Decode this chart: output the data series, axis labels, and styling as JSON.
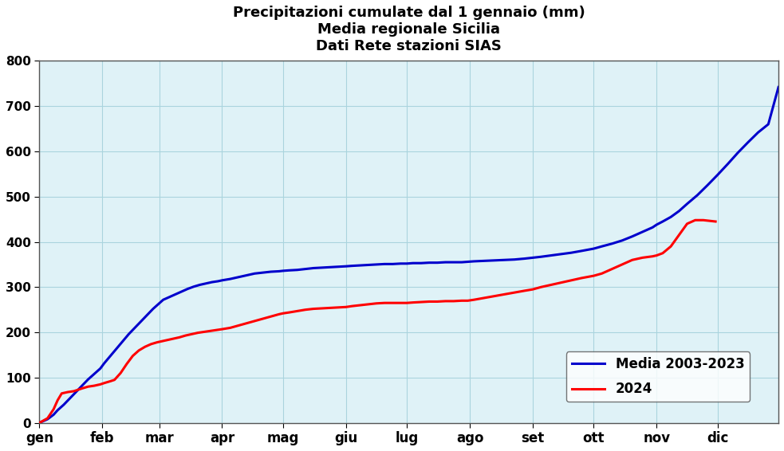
{
  "title_line1": "Precipitazioni cumulate dal 1 gennaio (mm)",
  "title_line2": "Media regionale Sicilia",
  "title_line3": "Dati Rete stazioni SIAS",
  "plot_bg_color": "#dff2f7",
  "outer_bg_color": "#ffffff",
  "ylim": [
    0,
    800
  ],
  "yticks": [
    0,
    100,
    200,
    300,
    400,
    500,
    600,
    700,
    800
  ],
  "months": [
    "gen",
    "feb",
    "mar",
    "apr",
    "mag",
    "giu",
    "lug",
    "ago",
    "set",
    "ott",
    "nov",
    "dic"
  ],
  "month_positions": [
    1,
    32,
    60,
    91,
    121,
    152,
    182,
    213,
    244,
    274,
    305,
    335
  ],
  "red_label": "2024",
  "blue_label": "Media 2003-2023",
  "red_color": "#ff0000",
  "blue_color": "#0000cc",
  "line_width": 2.2,
  "red_x": [
    1,
    5,
    8,
    10,
    12,
    15,
    18,
    20,
    22,
    25,
    28,
    31,
    33,
    36,
    38,
    41,
    44,
    47,
    50,
    53,
    56,
    59,
    61,
    64,
    67,
    70,
    73,
    76,
    79,
    82,
    85,
    88,
    91,
    95,
    99,
    103,
    107,
    111,
    115,
    119,
    121,
    124,
    128,
    132,
    136,
    140,
    144,
    148,
    152,
    155,
    159,
    163,
    167,
    171,
    175,
    179,
    182,
    185,
    189,
    193,
    197,
    201,
    205,
    209,
    212,
    215,
    220,
    225,
    230,
    235,
    240,
    244,
    248,
    253,
    258,
    263,
    268,
    274,
    278,
    283,
    288,
    293,
    298,
    303,
    305,
    308,
    312,
    316,
    320,
    324,
    328,
    332,
    334
  ],
  "red_y": [
    0,
    10,
    30,
    50,
    65,
    68,
    70,
    73,
    76,
    80,
    82,
    85,
    88,
    92,
    95,
    110,
    130,
    148,
    160,
    168,
    174,
    178,
    180,
    183,
    186,
    189,
    193,
    196,
    199,
    201,
    203,
    205,
    207,
    210,
    215,
    220,
    225,
    230,
    235,
    240,
    242,
    244,
    247,
    250,
    252,
    253,
    254,
    255,
    256,
    258,
    260,
    262,
    264,
    265,
    265,
    265,
    265,
    266,
    267,
    268,
    268,
    269,
    269,
    270,
    270,
    272,
    276,
    280,
    284,
    288,
    292,
    295,
    300,
    305,
    310,
    315,
    320,
    325,
    330,
    340,
    350,
    360,
    365,
    368,
    370,
    375,
    390,
    415,
    440,
    448,
    448,
    446,
    445
  ],
  "blue_x": [
    1,
    5,
    8,
    10,
    13,
    16,
    19,
    22,
    25,
    28,
    31,
    33,
    36,
    39,
    42,
    45,
    48,
    51,
    54,
    57,
    60,
    62,
    65,
    68,
    71,
    74,
    77,
    80,
    83,
    86,
    89,
    91,
    95,
    99,
    103,
    107,
    111,
    115,
    119,
    121,
    124,
    128,
    132,
    136,
    140,
    144,
    148,
    152,
    155,
    159,
    163,
    167,
    171,
    175,
    179,
    182,
    185,
    189,
    193,
    197,
    201,
    205,
    209,
    212,
    215,
    220,
    225,
    230,
    235,
    240,
    244,
    248,
    253,
    258,
    263,
    268,
    274,
    278,
    283,
    288,
    293,
    298,
    303,
    305,
    308,
    312,
    316,
    320,
    325,
    330,
    335,
    340,
    345,
    350,
    355,
    360,
    365
  ],
  "blue_y": [
    0,
    8,
    18,
    28,
    40,
    54,
    68,
    82,
    96,
    108,
    120,
    132,
    148,
    164,
    180,
    196,
    210,
    224,
    238,
    252,
    264,
    272,
    278,
    284,
    290,
    296,
    301,
    305,
    308,
    311,
    313,
    315,
    318,
    322,
    326,
    330,
    332,
    334,
    335,
    336,
    337,
    338,
    340,
    342,
    343,
    344,
    345,
    346,
    347,
    348,
    349,
    350,
    351,
    351,
    352,
    352,
    353,
    353,
    354,
    354,
    355,
    355,
    355,
    356,
    357,
    358,
    359,
    360,
    361,
    363,
    365,
    367,
    370,
    373,
    376,
    380,
    385,
    390,
    396,
    403,
    412,
    422,
    432,
    438,
    445,
    455,
    468,
    484,
    503,
    525,
    548,
    572,
    597,
    620,
    642,
    660,
    742
  ]
}
